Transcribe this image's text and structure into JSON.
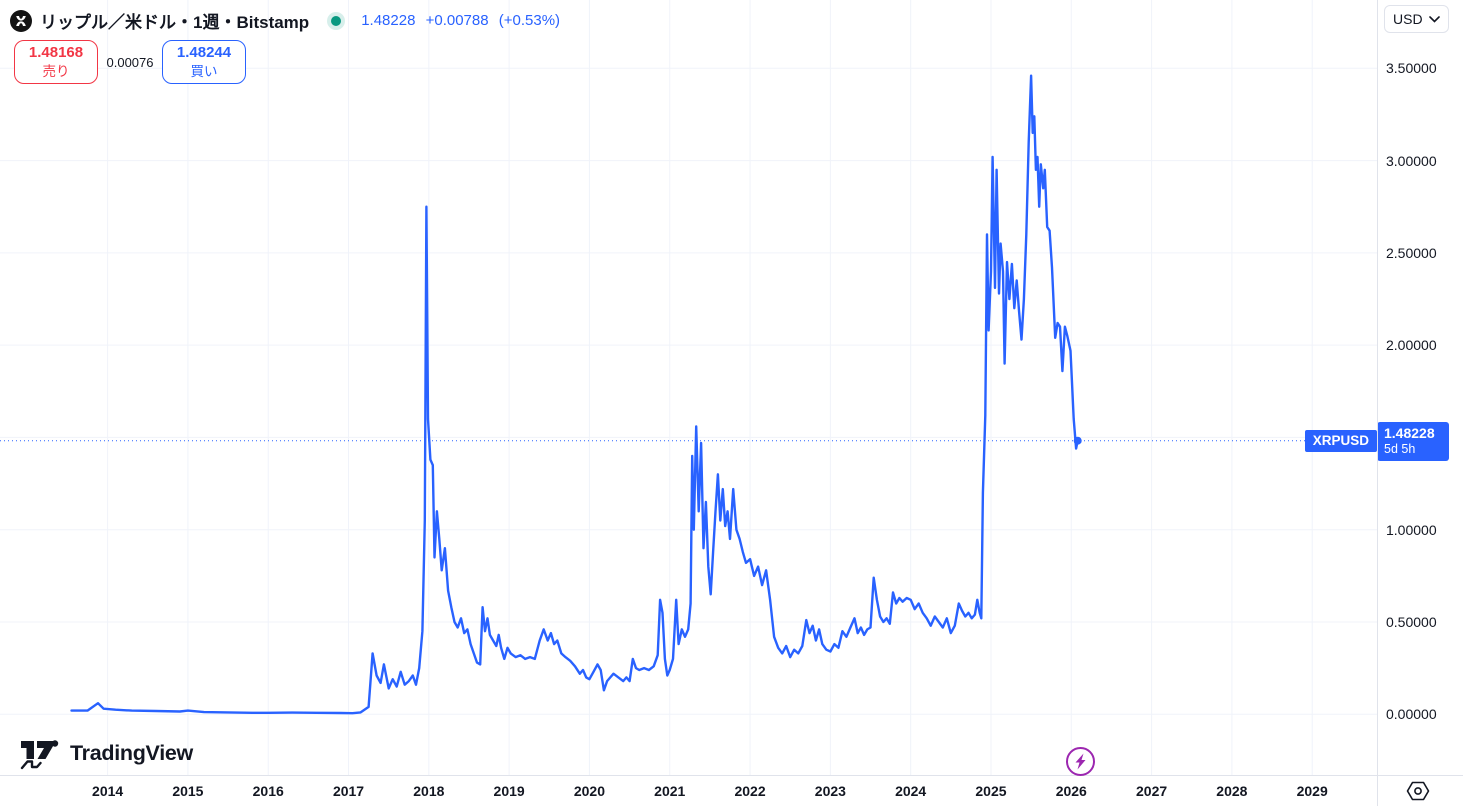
{
  "header": {
    "symbol_title": "リップル／米ドル・1週・Bitstamp",
    "last_price": "1.48228",
    "change": "+0.00788",
    "change_pct": "(+0.53%)",
    "sell": {
      "price": "1.48168",
      "label": "売り"
    },
    "spread": "0.00076",
    "buy": {
      "price": "1.48244",
      "label": "買い"
    }
  },
  "price_scale": {
    "currency": "USD",
    "labels": [
      "3.50000",
      "3.00000",
      "2.50000",
      "2.00000",
      "1.00000",
      "0.50000",
      "0.00000"
    ],
    "label_values": [
      3.5,
      3.0,
      2.5,
      2.0,
      1.0,
      0.5,
      0.0
    ],
    "price_label": {
      "symbol": "XRPUSD",
      "price": "1.48228",
      "countdown": "5d 5h"
    }
  },
  "time_scale": {
    "years": [
      "2014",
      "2015",
      "2016",
      "2017",
      "2018",
      "2019",
      "2020",
      "2021",
      "2022",
      "2023",
      "2024",
      "2025",
      "2026",
      "2027",
      "2028",
      "2029"
    ]
  },
  "footer": {
    "logo_text": "TradingView"
  },
  "colors": {
    "line": "#2962ff",
    "up": "#089981",
    "sell": "#f23645",
    "buy": "#2962ff",
    "grid": "#f0f3fa",
    "axis_border": "#e0e3eb",
    "text": "#131722",
    "accent_purple": "#9c27b0"
  },
  "chart_data": {
    "type": "line",
    "title": "リップル／米ドル・1週・Bitstamp",
    "symbol": "XRPUSD",
    "interval": "1週",
    "exchange": "Bitstamp",
    "current_price": 1.48228,
    "legend_position": "none",
    "grid": true,
    "x_axis": {
      "label": "",
      "ticks": [
        2014,
        2015,
        2016,
        2017,
        2018,
        2019,
        2020,
        2021,
        2022,
        2023,
        2024,
        2025,
        2026,
        2027,
        2028,
        2029
      ],
      "domain": [
        2012.66,
        2029.807
      ]
    },
    "y_axis": {
      "label": "USD",
      "ticks": [
        0,
        0.5,
        1,
        1.5,
        2,
        2.5,
        3,
        3.5
      ],
      "domain": [
        -0.329,
        3.87
      ]
    },
    "series": [
      {
        "name": "XRPUSD",
        "color": "#2962ff",
        "points": [
          [
            2013.55,
            0.02
          ],
          [
            2013.75,
            0.02
          ],
          [
            2013.88,
            0.06
          ],
          [
            2013.95,
            0.03
          ],
          [
            2014.1,
            0.025
          ],
          [
            2014.3,
            0.02
          ],
          [
            2014.6,
            0.018
          ],
          [
            2014.9,
            0.015
          ],
          [
            2015.0,
            0.02
          ],
          [
            2015.2,
            0.012
          ],
          [
            2015.5,
            0.01
          ],
          [
            2015.8,
            0.008
          ],
          [
            2016.0,
            0.008
          ],
          [
            2016.3,
            0.009
          ],
          [
            2016.6,
            0.008
          ],
          [
            2016.9,
            0.007
          ],
          [
            2017.05,
            0.006
          ],
          [
            2017.15,
            0.01
          ],
          [
            2017.25,
            0.04
          ],
          [
            2017.3,
            0.33
          ],
          [
            2017.35,
            0.21
          ],
          [
            2017.4,
            0.17
          ],
          [
            2017.44,
            0.27
          ],
          [
            2017.5,
            0.14
          ],
          [
            2017.55,
            0.19
          ],
          [
            2017.6,
            0.15
          ],
          [
            2017.65,
            0.23
          ],
          [
            2017.7,
            0.16
          ],
          [
            2017.75,
            0.18
          ],
          [
            2017.8,
            0.21
          ],
          [
            2017.84,
            0.16
          ],
          [
            2017.88,
            0.25
          ],
          [
            2017.92,
            0.45
          ],
          [
            2017.95,
            1.05
          ],
          [
            2017.97,
            2.75
          ],
          [
            2017.99,
            1.6
          ],
          [
            2018.02,
            1.38
          ],
          [
            2018.05,
            1.35
          ],
          [
            2018.07,
            0.85
          ],
          [
            2018.1,
            1.1
          ],
          [
            2018.13,
            0.95
          ],
          [
            2018.16,
            0.78
          ],
          [
            2018.2,
            0.9
          ],
          [
            2018.24,
            0.67
          ],
          [
            2018.28,
            0.58
          ],
          [
            2018.32,
            0.5
          ],
          [
            2018.36,
            0.47
          ],
          [
            2018.4,
            0.52
          ],
          [
            2018.44,
            0.44
          ],
          [
            2018.48,
            0.46
          ],
          [
            2018.52,
            0.38
          ],
          [
            2018.56,
            0.33
          ],
          [
            2018.6,
            0.28
          ],
          [
            2018.64,
            0.27
          ],
          [
            2018.67,
            0.58
          ],
          [
            2018.7,
            0.45
          ],
          [
            2018.73,
            0.52
          ],
          [
            2018.76,
            0.43
          ],
          [
            2018.8,
            0.4
          ],
          [
            2018.84,
            0.37
          ],
          [
            2018.87,
            0.43
          ],
          [
            2018.9,
            0.36
          ],
          [
            2018.94,
            0.3
          ],
          [
            2018.98,
            0.36
          ],
          [
            2019.02,
            0.33
          ],
          [
            2019.08,
            0.31
          ],
          [
            2019.14,
            0.32
          ],
          [
            2019.2,
            0.3
          ],
          [
            2019.26,
            0.31
          ],
          [
            2019.32,
            0.3
          ],
          [
            2019.38,
            0.4
          ],
          [
            2019.43,
            0.46
          ],
          [
            2019.48,
            0.4
          ],
          [
            2019.52,
            0.44
          ],
          [
            2019.56,
            0.38
          ],
          [
            2019.6,
            0.4
          ],
          [
            2019.65,
            0.33
          ],
          [
            2019.7,
            0.31
          ],
          [
            2019.76,
            0.29
          ],
          [
            2019.82,
            0.26
          ],
          [
            2019.88,
            0.22
          ],
          [
            2019.92,
            0.24
          ],
          [
            2019.96,
            0.2
          ],
          [
            2020.0,
            0.19
          ],
          [
            2020.05,
            0.23
          ],
          [
            2020.1,
            0.27
          ],
          [
            2020.14,
            0.24
          ],
          [
            2020.18,
            0.13
          ],
          [
            2020.22,
            0.18
          ],
          [
            2020.26,
            0.2
          ],
          [
            2020.3,
            0.22
          ],
          [
            2020.36,
            0.2
          ],
          [
            2020.42,
            0.18
          ],
          [
            2020.46,
            0.2
          ],
          [
            2020.5,
            0.18
          ],
          [
            2020.54,
            0.3
          ],
          [
            2020.58,
            0.25
          ],
          [
            2020.62,
            0.24
          ],
          [
            2020.68,
            0.25
          ],
          [
            2020.74,
            0.24
          ],
          [
            2020.8,
            0.26
          ],
          [
            2020.85,
            0.32
          ],
          [
            2020.88,
            0.62
          ],
          [
            2020.91,
            0.55
          ],
          [
            2020.94,
            0.3
          ],
          [
            2020.97,
            0.21
          ],
          [
            2021.0,
            0.24
          ],
          [
            2021.04,
            0.3
          ],
          [
            2021.08,
            0.62
          ],
          [
            2021.11,
            0.38
          ],
          [
            2021.15,
            0.46
          ],
          [
            2021.19,
            0.42
          ],
          [
            2021.23,
            0.46
          ],
          [
            2021.26,
            0.6
          ],
          [
            2021.28,
            1.4
          ],
          [
            2021.3,
            1.0
          ],
          [
            2021.33,
            1.56
          ],
          [
            2021.36,
            1.1
          ],
          [
            2021.39,
            1.47
          ],
          [
            2021.42,
            0.9
          ],
          [
            2021.45,
            1.15
          ],
          [
            2021.48,
            0.8
          ],
          [
            2021.51,
            0.65
          ],
          [
            2021.54,
            0.88
          ],
          [
            2021.57,
            1.1
          ],
          [
            2021.6,
            1.3
          ],
          [
            2021.63,
            1.05
          ],
          [
            2021.66,
            1.22
          ],
          [
            2021.69,
            1.02
          ],
          [
            2021.72,
            1.1
          ],
          [
            2021.75,
            0.95
          ],
          [
            2021.79,
            1.22
          ],
          [
            2021.83,
            1.0
          ],
          [
            2021.87,
            0.95
          ],
          [
            2021.91,
            0.88
          ],
          [
            2021.95,
            0.82
          ],
          [
            2022.0,
            0.84
          ],
          [
            2022.05,
            0.75
          ],
          [
            2022.1,
            0.8
          ],
          [
            2022.15,
            0.7
          ],
          [
            2022.2,
            0.78
          ],
          [
            2022.25,
            0.62
          ],
          [
            2022.3,
            0.42
          ],
          [
            2022.35,
            0.36
          ],
          [
            2022.4,
            0.33
          ],
          [
            2022.45,
            0.37
          ],
          [
            2022.5,
            0.31
          ],
          [
            2022.55,
            0.35
          ],
          [
            2022.6,
            0.33
          ],
          [
            2022.65,
            0.37
          ],
          [
            2022.7,
            0.51
          ],
          [
            2022.74,
            0.44
          ],
          [
            2022.78,
            0.48
          ],
          [
            2022.82,
            0.4
          ],
          [
            2022.86,
            0.46
          ],
          [
            2022.9,
            0.38
          ],
          [
            2022.95,
            0.35
          ],
          [
            2023.0,
            0.34
          ],
          [
            2023.05,
            0.38
          ],
          [
            2023.1,
            0.36
          ],
          [
            2023.15,
            0.45
          ],
          [
            2023.2,
            0.42
          ],
          [
            2023.25,
            0.47
          ],
          [
            2023.3,
            0.52
          ],
          [
            2023.34,
            0.44
          ],
          [
            2023.38,
            0.47
          ],
          [
            2023.42,
            0.43
          ],
          [
            2023.46,
            0.46
          ],
          [
            2023.5,
            0.47
          ],
          [
            2023.54,
            0.74
          ],
          [
            2023.58,
            0.62
          ],
          [
            2023.62,
            0.53
          ],
          [
            2023.66,
            0.5
          ],
          [
            2023.7,
            0.52
          ],
          [
            2023.74,
            0.49
          ],
          [
            2023.78,
            0.66
          ],
          [
            2023.82,
            0.6
          ],
          [
            2023.86,
            0.63
          ],
          [
            2023.9,
            0.61
          ],
          [
            2023.95,
            0.63
          ],
          [
            2024.0,
            0.62
          ],
          [
            2024.05,
            0.57
          ],
          [
            2024.1,
            0.6
          ],
          [
            2024.15,
            0.55
          ],
          [
            2024.2,
            0.52
          ],
          [
            2024.25,
            0.48
          ],
          [
            2024.3,
            0.53
          ],
          [
            2024.35,
            0.5
          ],
          [
            2024.4,
            0.47
          ],
          [
            2024.45,
            0.52
          ],
          [
            2024.5,
            0.44
          ],
          [
            2024.55,
            0.48
          ],
          [
            2024.6,
            0.6
          ],
          [
            2024.64,
            0.56
          ],
          [
            2024.68,
            0.53
          ],
          [
            2024.72,
            0.55
          ],
          [
            2024.76,
            0.52
          ],
          [
            2024.8,
            0.54
          ],
          [
            2024.83,
            0.62
          ],
          [
            2024.86,
            0.55
          ],
          [
            2024.88,
            0.52
          ],
          [
            2024.9,
            1.2
          ],
          [
            2024.93,
            1.62
          ],
          [
            2024.95,
            2.6
          ],
          [
            2024.97,
            2.08
          ],
          [
            2025.0,
            2.4
          ],
          [
            2025.02,
            3.02
          ],
          [
            2025.05,
            2.31
          ],
          [
            2025.07,
            2.95
          ],
          [
            2025.1,
            2.28
          ],
          [
            2025.12,
            2.55
          ],
          [
            2025.15,
            2.4
          ],
          [
            2025.17,
            1.9
          ],
          [
            2025.2,
            2.45
          ],
          [
            2025.23,
            2.25
          ],
          [
            2025.26,
            2.44
          ],
          [
            2025.29,
            2.2
          ],
          [
            2025.32,
            2.35
          ],
          [
            2025.35,
            2.18
          ],
          [
            2025.38,
            2.03
          ],
          [
            2025.41,
            2.25
          ],
          [
            2025.44,
            2.6
          ],
          [
            2025.47,
            3.1
          ],
          [
            2025.5,
            3.46
          ],
          [
            2025.52,
            3.15
          ],
          [
            2025.54,
            3.24
          ],
          [
            2025.56,
            2.95
          ],
          [
            2025.58,
            3.02
          ],
          [
            2025.6,
            2.75
          ],
          [
            2025.62,
            2.98
          ],
          [
            2025.65,
            2.85
          ],
          [
            2025.67,
            2.95
          ],
          [
            2025.7,
            2.64
          ],
          [
            2025.73,
            2.62
          ],
          [
            2025.76,
            2.42
          ],
          [
            2025.8,
            2.04
          ],
          [
            2025.83,
            2.12
          ],
          [
            2025.86,
            2.1
          ],
          [
            2025.89,
            1.86
          ],
          [
            2025.92,
            2.1
          ],
          [
            2025.95,
            2.05
          ],
          [
            2025.99,
            1.97
          ],
          [
            2026.03,
            1.6
          ],
          [
            2026.06,
            1.44
          ],
          [
            2026.08,
            1.48228
          ]
        ]
      }
    ]
  }
}
